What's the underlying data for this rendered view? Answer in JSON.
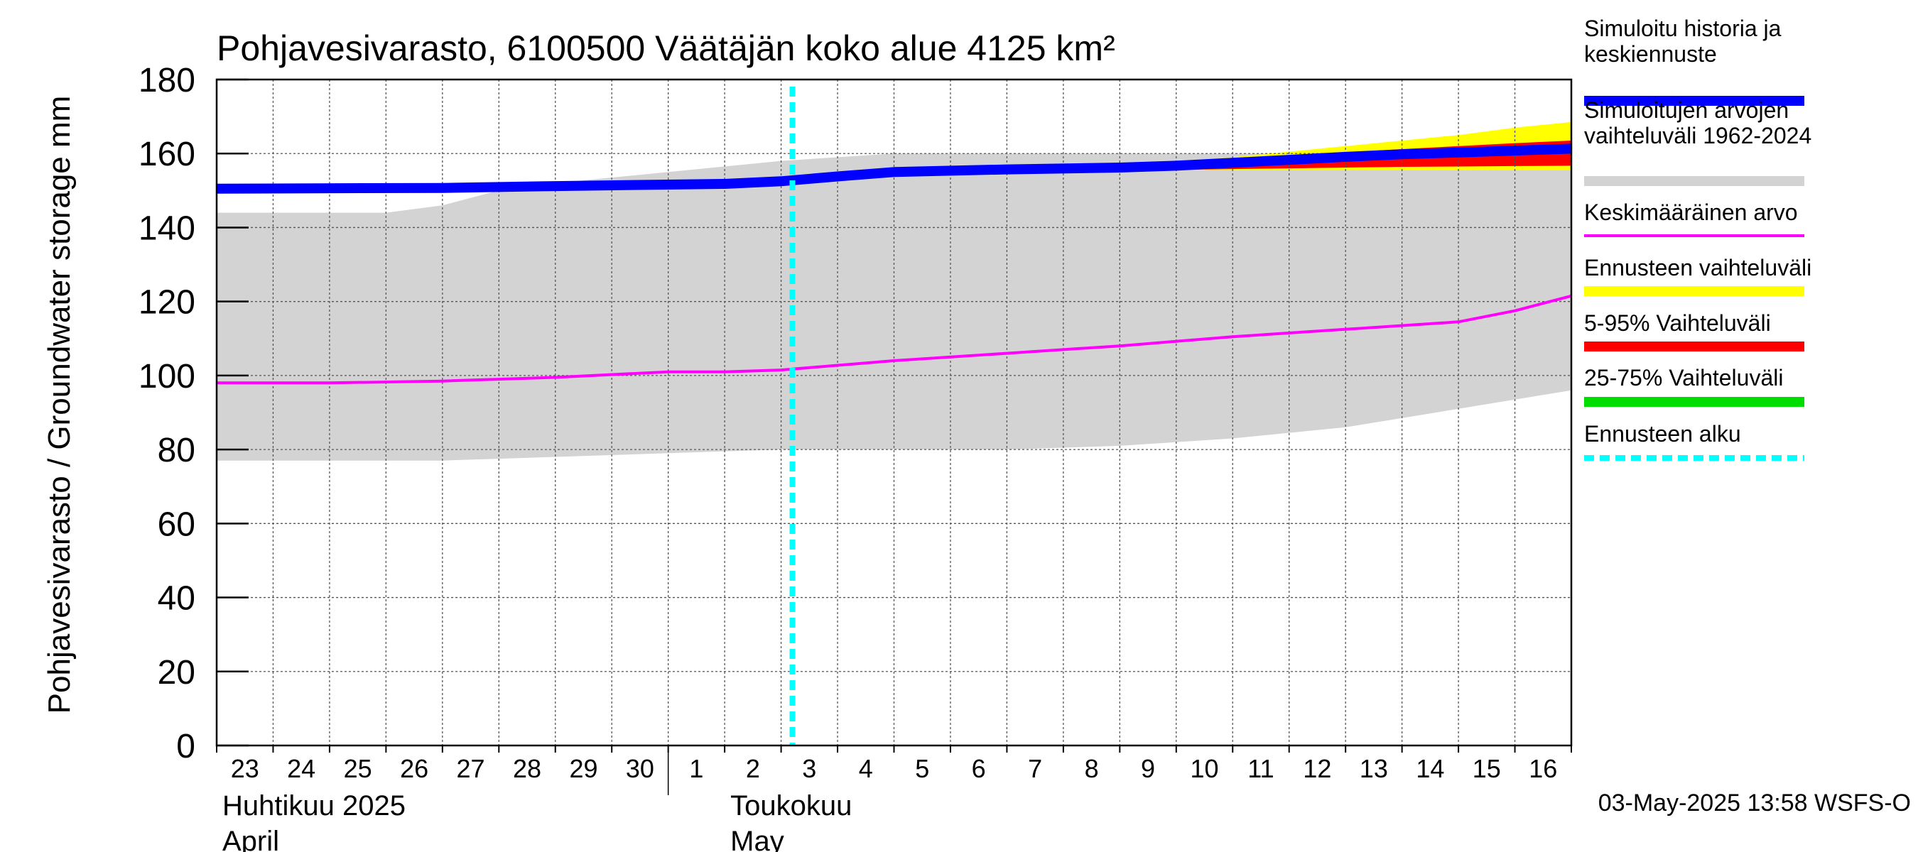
{
  "chart_data": {
    "type": "area",
    "title": "Pohjavesivarasto, 6100500 Väätäjän koko alue 4125 km²",
    "ylabel": "Pohjavesivarasto / Groundwater storage   mm",
    "ylim": [
      0,
      180
    ],
    "yticks": [
      0,
      20,
      40,
      60,
      80,
      100,
      120,
      140,
      160,
      180
    ],
    "x_days": [
      "23",
      "24",
      "25",
      "26",
      "27",
      "28",
      "29",
      "30",
      "1",
      "2",
      "3",
      "4",
      "5",
      "6",
      "7",
      "8",
      "9",
      "10",
      "11",
      "12",
      "13",
      "14",
      "15",
      "16"
    ],
    "x_range": [
      0,
      24
    ],
    "month_labels": [
      {
        "fi": "Huhtikuu  2025",
        "en": "April",
        "at": 0
      },
      {
        "fi": "Toukokuu",
        "en": "May",
        "at": 9
      }
    ],
    "month_separator_at": 8,
    "forecast_start": 10.2,
    "grid": true,
    "series": [
      {
        "name": "Simuloitujen arvojen vaihteluväli 1962-2024",
        "kind": "band",
        "color": "#d3d3d3",
        "x": [
          0,
          3,
          4,
          5,
          6,
          8,
          10,
          12,
          14,
          16,
          18,
          20,
          22,
          24
        ],
        "upper": [
          144,
          144,
          146,
          150,
          152,
          155,
          158,
          160,
          160,
          160,
          160,
          160,
          159,
          158
        ],
        "lower": [
          77,
          77,
          77,
          77.5,
          78,
          79,
          80,
          80,
          80,
          81,
          83,
          86,
          91,
          96
        ]
      },
      {
        "name": "Ennusteen vaihteluväli",
        "kind": "band",
        "color": "#ffff00",
        "x": [
          10.2,
          12,
          14,
          16,
          17,
          18,
          19,
          20,
          21,
          22,
          23,
          24
        ],
        "upper": [
          154,
          155.5,
          156,
          156.5,
          157.5,
          159,
          160.5,
          162,
          163.5,
          165,
          167,
          168.5
        ],
        "lower": [
          154,
          155,
          155.3,
          155.5,
          155.5,
          155.5,
          155.5,
          155.5,
          155.5,
          155.5,
          155.5,
          155.5
        ]
      },
      {
        "name": "5-95% Vaihteluväli",
        "kind": "band",
        "color": "#ff0000",
        "x": [
          10.2,
          12,
          14,
          16,
          17,
          18,
          19,
          20,
          21,
          22,
          23,
          24
        ],
        "upper": [
          154,
          155.5,
          156,
          156.3,
          157.2,
          158.2,
          159.3,
          160.3,
          161.2,
          162,
          162.8,
          163.5
        ],
        "lower": [
          154,
          155,
          155.3,
          155.5,
          155.6,
          155.8,
          156,
          156.2,
          156.4,
          156.5,
          156.6,
          156.7
        ]
      },
      {
        "name": "25-75% Vaihteluväli",
        "kind": "band",
        "color": "#00dd00",
        "x": [
          10.2,
          12,
          14,
          16,
          17,
          18,
          19,
          20,
          21,
          22,
          23,
          24
        ],
        "upper": [
          154,
          155.3,
          155.8,
          156.2,
          157,
          157.8,
          158.7,
          159.5,
          160.2,
          160.8,
          161.4,
          162
        ],
        "lower": [
          154,
          155.1,
          155.5,
          155.8,
          156.3,
          156.9,
          157.6,
          158.2,
          158.8,
          159.3,
          159.8,
          160.3
        ]
      },
      {
        "name": "Keskimääräinen arvo",
        "kind": "line",
        "color": "#ff00ff",
        "x": [
          0,
          2,
          4,
          6,
          8,
          9,
          10,
          12,
          14,
          16,
          18,
          20,
          22,
          23,
          24
        ],
        "y": [
          98,
          98,
          98.5,
          99.5,
          101,
          101,
          101.5,
          104,
          106,
          108,
          110.5,
          112.5,
          114.5,
          117.5,
          121.5
        ]
      },
      {
        "name": "Simuloitu historia ja keskiennuste",
        "kind": "line",
        "color": "#0000ff",
        "x": [
          0,
          4,
          6,
          8,
          9,
          10,
          11,
          12,
          14,
          16,
          17,
          18,
          19,
          20,
          21,
          22,
          23,
          24
        ],
        "y": [
          150.5,
          150.7,
          151.2,
          151.6,
          151.8,
          152.5,
          153.8,
          155,
          155.7,
          156.2,
          156.7,
          157.5,
          158.3,
          159.1,
          159.8,
          160.3,
          160.8,
          161.3
        ]
      }
    ],
    "forecast_line": {
      "name": "Ennusteen alku",
      "color": "#00ffff"
    },
    "legend": [
      {
        "label": "Simuloitu historia ja\nkeskiennuste",
        "color": "#0000ff",
        "style": "solid"
      },
      {
        "label": "Simuloitujen arvojen\nvaihteluväli 1962-2024",
        "color": "#d3d3d3",
        "style": "solid"
      },
      {
        "label": "Keskimääräinen arvo",
        "color": "#ff00ff",
        "style": "thin"
      },
      {
        "label": "Ennusteen vaihteluväli",
        "color": "#ffff00",
        "style": "solid"
      },
      {
        "label": "5-95% Vaihteluväli",
        "color": "#ff0000",
        "style": "solid"
      },
      {
        "label": "25-75% Vaihteluväli",
        "color": "#00dd00",
        "style": "solid"
      },
      {
        "label": "Ennusteen alku",
        "color": "#00ffff",
        "style": "dashed"
      }
    ],
    "legend_position": "right",
    "footer": "03-May-2025 13:58 WSFS-O"
  }
}
